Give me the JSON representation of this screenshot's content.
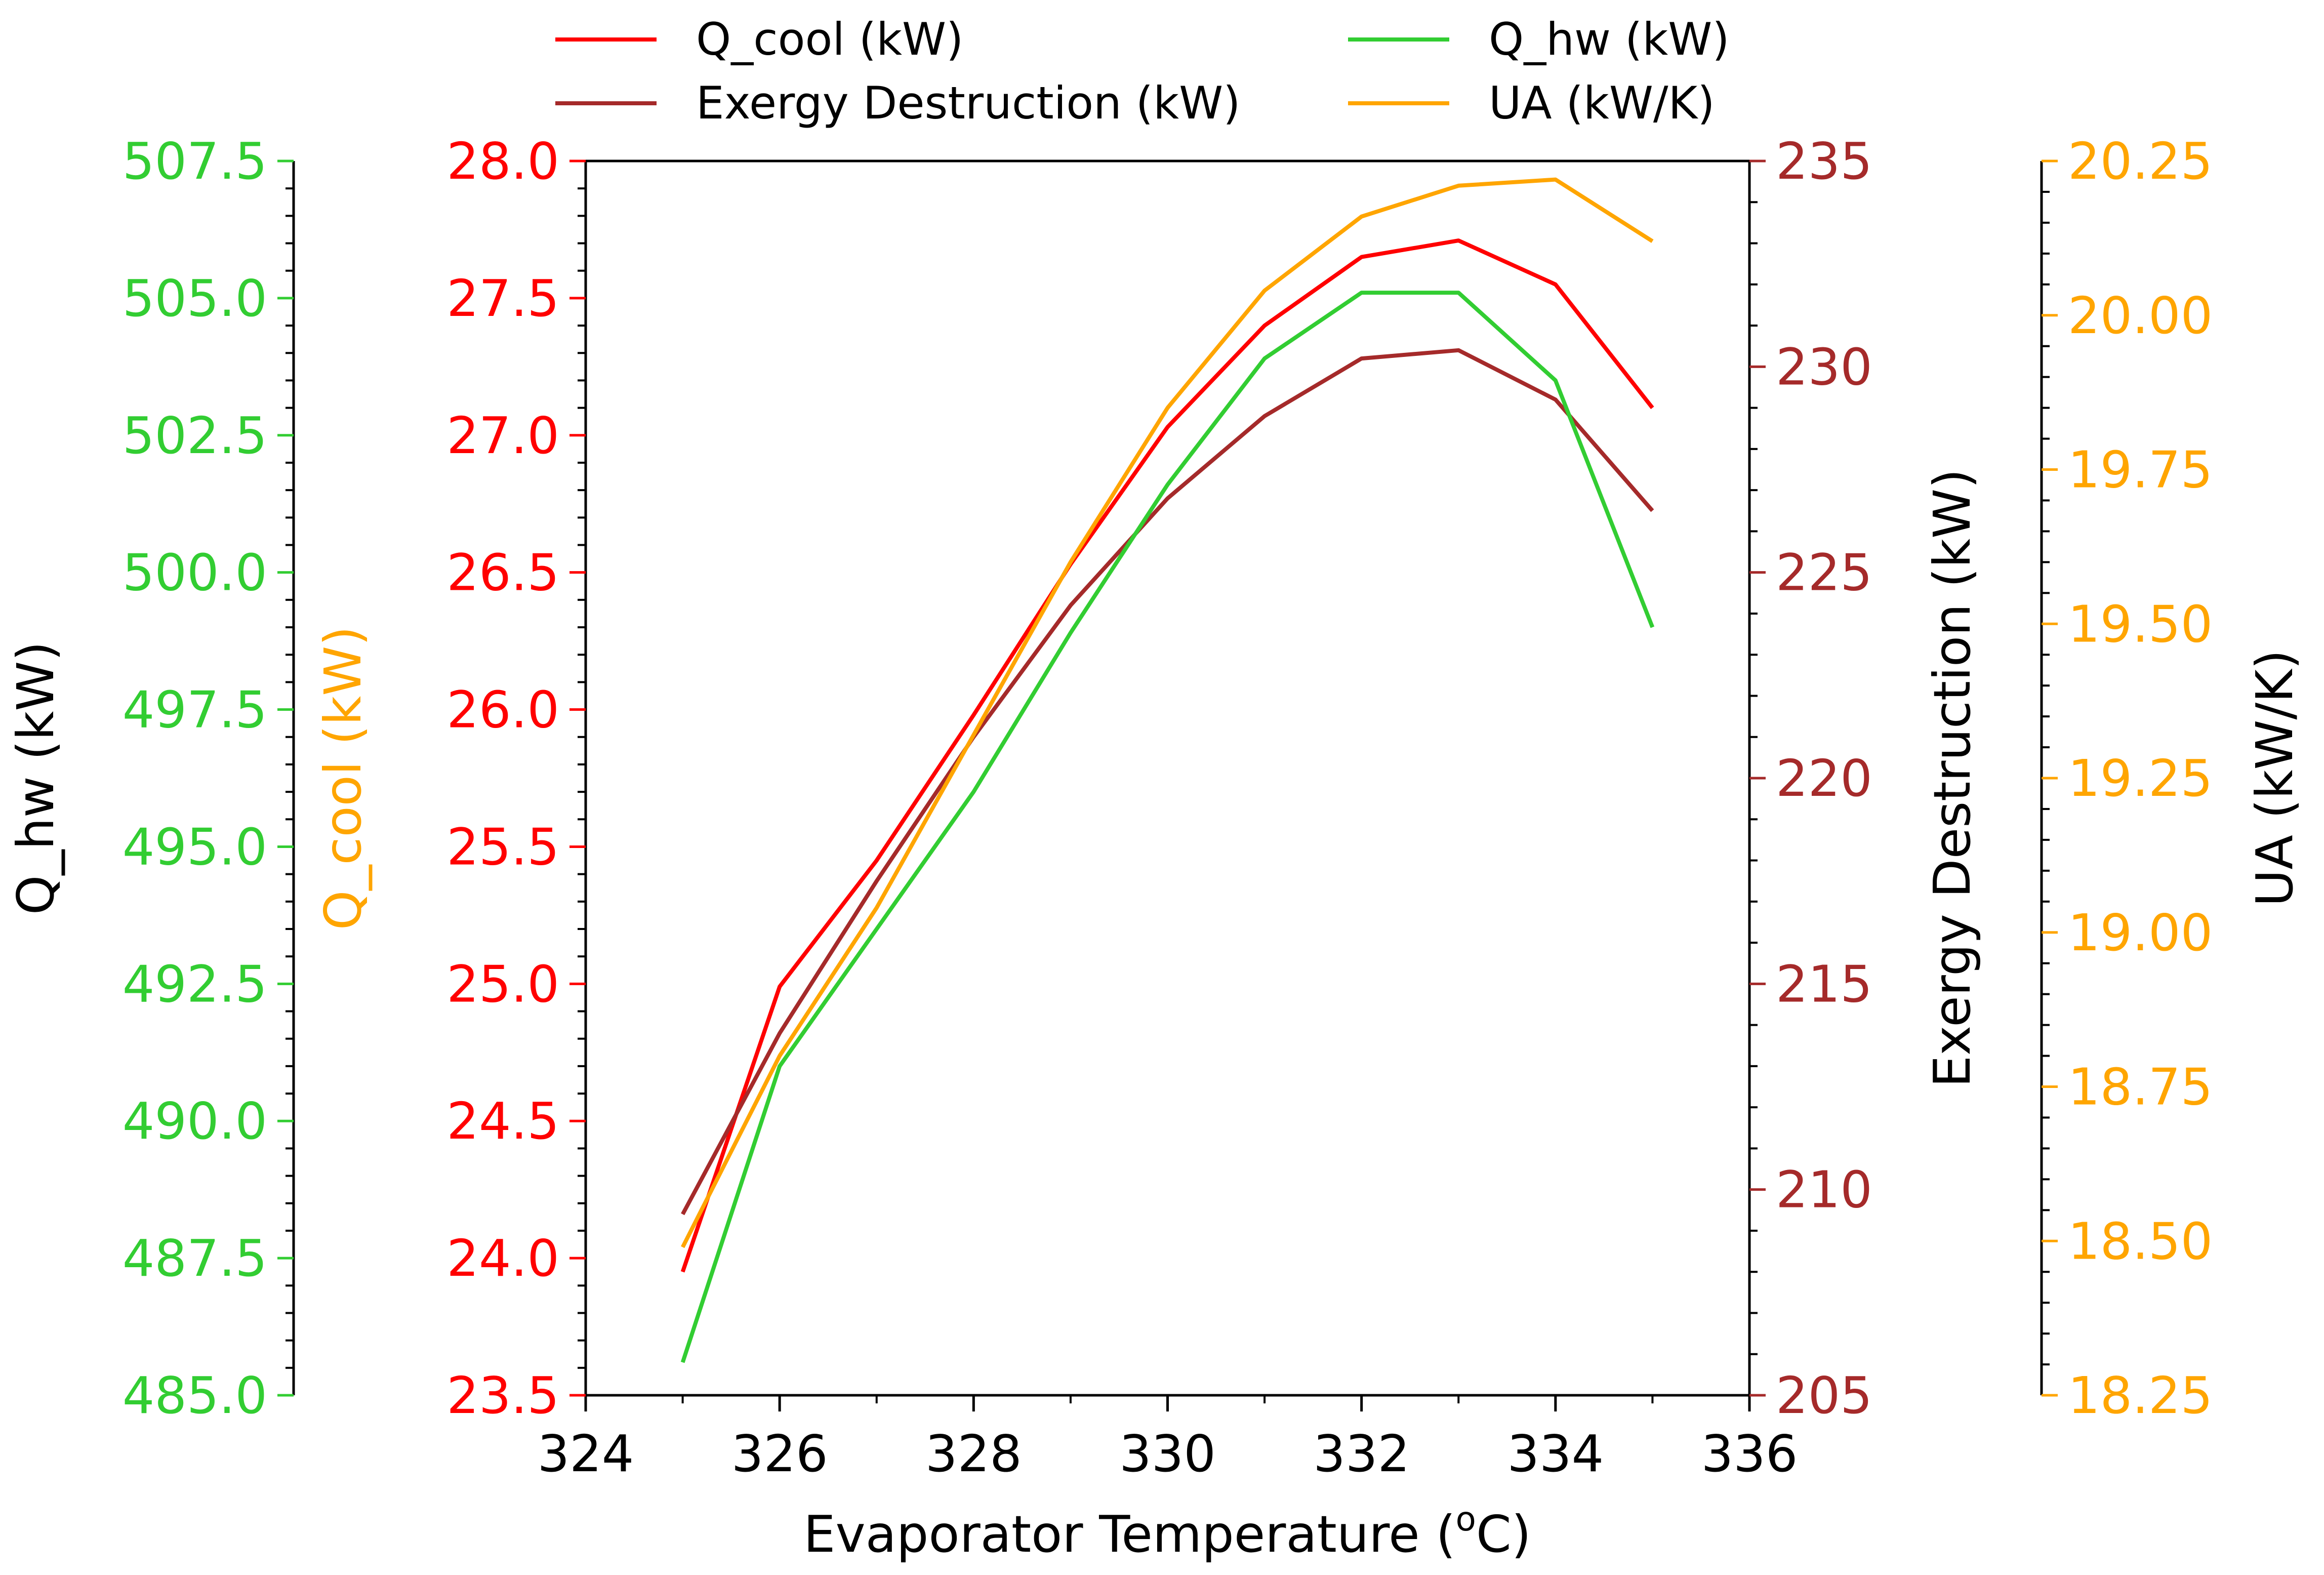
{
  "chart_data": {
    "type": "line",
    "title": "",
    "xlabel_main": "Evaporator Temperature (",
    "xlabel_sup": "o",
    "xlabel_tail": "C)",
    "xlim": [
      324,
      336
    ],
    "xticks": [
      "324",
      "326",
      "328",
      "330",
      "332",
      "334",
      "336"
    ],
    "x": [
      325,
      326,
      327,
      328,
      329,
      330,
      331,
      332,
      333,
      334,
      335
    ],
    "axes": {
      "q_cool": {
        "label": "Q_cool (kW)",
        "ylim": [
          23.5,
          28.0
        ],
        "ticks": [
          "23.5",
          "24.0",
          "24.5",
          "25.0",
          "25.5",
          "26.0",
          "26.5",
          "27.0",
          "27.5",
          "28.0"
        ],
        "label_color": "#FFA500",
        "tick_color": "#FF0000"
      },
      "q_hw": {
        "label": "Q_hw (kW)",
        "ylim": [
          485.0,
          507.5
        ],
        "ticks": [
          "485.0",
          "487.5",
          "490.0",
          "492.5",
          "495.0",
          "497.5",
          "500.0",
          "502.5",
          "505.0",
          "507.5"
        ],
        "label_color": "#000000",
        "tick_color": "#32CD32"
      },
      "exergy": {
        "label": "Exergy Destruction (kW)",
        "ylim": [
          205,
          235
        ],
        "ticks": [
          "205",
          "210",
          "215",
          "220",
          "225",
          "230",
          "235"
        ],
        "label_color": "#000000",
        "tick_color": "#A52A2A"
      },
      "ua": {
        "label": "UA (kW/K)",
        "ylim": [
          18.25,
          20.25
        ],
        "ticks": [
          "18.25",
          "18.50",
          "18.75",
          "19.00",
          "19.25",
          "19.50",
          "19.75",
          "20.00",
          "20.25"
        ],
        "label_color": "#000000",
        "tick_color": "#FFA500"
      }
    },
    "series": [
      {
        "name": "Q_cool (kW)",
        "axis": "q_cool",
        "color": "#FF0000",
        "values": [
          23.95,
          24.99,
          25.45,
          25.98,
          26.53,
          27.03,
          27.4,
          27.65,
          27.71,
          27.55,
          27.1
        ]
      },
      {
        "name": "Exergy Destruction (kW)",
        "axis": "exergy",
        "color": "#A52A2A",
        "values": [
          209.4,
          213.8,
          217.5,
          221.0,
          224.2,
          226.8,
          228.8,
          230.2,
          230.4,
          229.2,
          226.5
        ]
      },
      {
        "name": "Q_hw (kW)",
        "axis": "q_hw",
        "color": "#32CD32",
        "values": [
          485.6,
          491.0,
          493.5,
          496.0,
          498.9,
          501.6,
          503.9,
          505.1,
          505.1,
          503.5,
          499.0
        ]
      },
      {
        "name": "UA (kW/K)",
        "axis": "ua",
        "color": "#FFA500",
        "values": [
          18.49,
          18.8,
          19.04,
          19.32,
          19.6,
          19.85,
          20.04,
          20.16,
          20.21,
          20.22,
          20.12
        ]
      }
    ],
    "legend_position": "top"
  }
}
